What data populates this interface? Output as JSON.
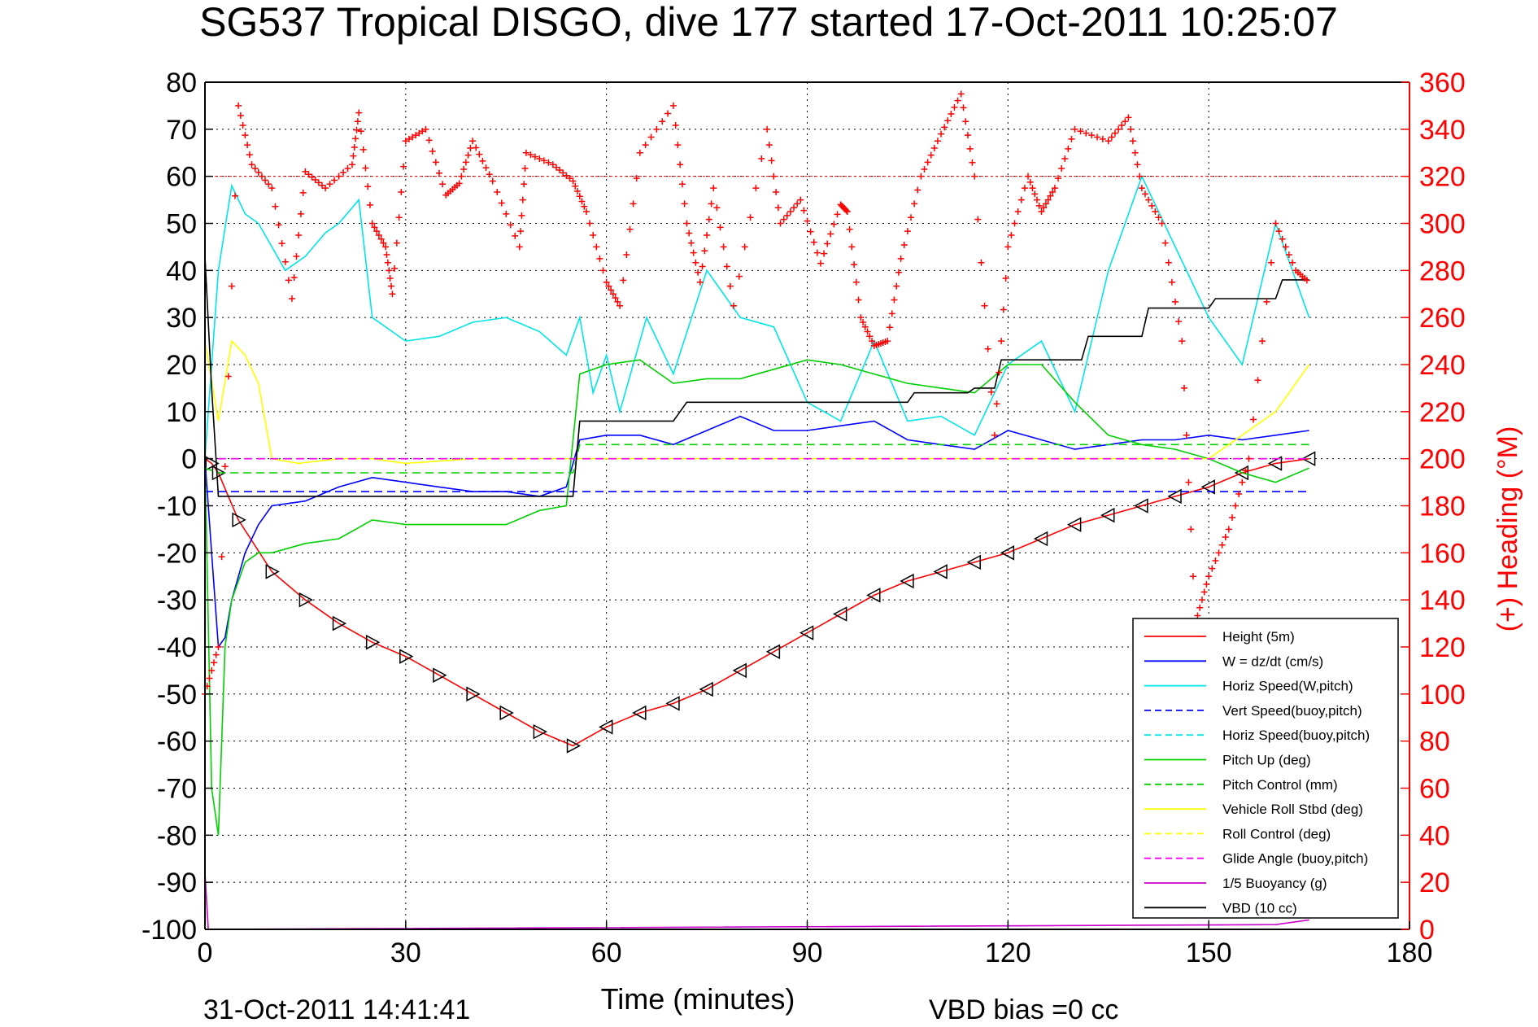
{
  "chart_data": {
    "type": "line",
    "title": "SG537 Tropical DISGO, dive 177 started 17-Oct-2011 10:25:07",
    "xlabel": "Time (minutes)",
    "ylabel_right": "(+) Heading (°M)",
    "footer_date": "31-Oct-2011 14:41:41",
    "footer_note": "VBD bias =0 cc",
    "xlim": [
      0,
      180
    ],
    "ylim": [
      -100,
      80
    ],
    "y2lim": [
      0,
      360
    ],
    "xticks": [
      0,
      30,
      60,
      90,
      120,
      150,
      180
    ],
    "yticks": [
      80,
      70,
      60,
      50,
      40,
      30,
      20,
      10,
      0,
      -10,
      -20,
      -30,
      -40,
      -50,
      -60,
      -70,
      -80,
      -90,
      -100
    ],
    "y2ticks": [
      360,
      340,
      320,
      300,
      280,
      260,
      240,
      220,
      200,
      180,
      160,
      140,
      120,
      100,
      80,
      60,
      40,
      20,
      0
    ],
    "grid": true,
    "legend_position": "bottom-right",
    "colors": {
      "height": "#ff0000",
      "w": "#0000ff",
      "horiz_w": "#00e5e5",
      "vert_buoy": "#0000ff",
      "horiz_buoy": "#00e5e5",
      "pitch_up": "#00d000",
      "pitch_control": "#00d000",
      "roll": "#ffff00",
      "roll_control": "#ffff00",
      "glide": "#ff00ff",
      "buoyancy": "#cc00cc",
      "vbd": "#000000",
      "heading": "#ff0000"
    },
    "legend": [
      {
        "label": "Height (5m)",
        "color": "#ff0000",
        "dash": "solid"
      },
      {
        "label": "W = dz/dt (cm/s)",
        "color": "#0000ff",
        "dash": "solid"
      },
      {
        "label": "Horiz Speed(W,pitch)",
        "color": "#00e5e5",
        "dash": "solid"
      },
      {
        "label": "Vert Speed(buoy,pitch)",
        "color": "#0000ff",
        "dash": "dashed"
      },
      {
        "label": "Horiz Speed(buoy,pitch)",
        "color": "#00e5e5",
        "dash": "dashed"
      },
      {
        "label": "Pitch Up (deg)",
        "color": "#00d000",
        "dash": "solid"
      },
      {
        "label": "Pitch Control (mm)",
        "color": "#00d000",
        "dash": "dashed"
      },
      {
        "label": "Vehicle Roll Stbd (deg)",
        "color": "#ffff00",
        "dash": "solid"
      },
      {
        "label": "Roll Control (deg)",
        "color": "#ffff00",
        "dash": "dashed"
      },
      {
        "label": "Glide Angle (buoy,pitch)",
        "color": "#ff00ff",
        "dash": "dashed"
      },
      {
        "label": "1/5 Buoyancy (g)",
        "color": "#cc00cc",
        "dash": "solid"
      },
      {
        "label": "VBD (10 cc)",
        "color": "#000000",
        "dash": "solid"
      }
    ],
    "series": [
      {
        "name": "Height (5m)",
        "x": [
          0,
          1,
          2,
          5,
          10,
          15,
          20,
          25,
          30,
          35,
          40,
          45,
          50,
          55,
          60,
          65,
          70,
          75,
          80,
          85,
          90,
          95,
          100,
          105,
          110,
          115,
          120,
          125,
          130,
          135,
          140,
          145,
          150,
          155,
          160,
          165
        ],
        "y": [
          0,
          -1,
          -3,
          -13,
          -24,
          -30,
          -35,
          -39,
          -42,
          -46,
          -50,
          -54,
          -58,
          -61,
          -57,
          -54,
          -52,
          -49,
          -45,
          -41,
          -37,
          -33,
          -29,
          -26,
          -24,
          -22,
          -20,
          -17,
          -14,
          -12,
          -10,
          -8,
          -6,
          -3,
          -1,
          0
        ]
      },
      {
        "name": "W = dz/dt (cm/s)",
        "x": [
          0,
          1,
          2,
          3,
          4,
          6,
          8,
          10,
          15,
          20,
          25,
          30,
          35,
          40,
          45,
          50,
          54,
          56,
          60,
          65,
          70,
          75,
          80,
          85,
          90,
          95,
          100,
          105,
          110,
          115,
          120,
          125,
          130,
          135,
          140,
          145,
          150,
          155,
          160,
          165
        ],
        "y": [
          0,
          -20,
          -40,
          -38,
          -30,
          -20,
          -14,
          -10,
          -9,
          -6,
          -4,
          -5,
          -6,
          -7,
          -7,
          -8,
          -6,
          4,
          5,
          5,
          3,
          6,
          9,
          6,
          6,
          7,
          8,
          4,
          3,
          2,
          6,
          4,
          2,
          3,
          4,
          4,
          5,
          4,
          5,
          6
        ]
      },
      {
        "name": "Horiz Speed(W,pitch)",
        "x": [
          0,
          2,
          4,
          6,
          8,
          10,
          12,
          15,
          18,
          20,
          23,
          25,
          30,
          35,
          40,
          45,
          50,
          54,
          56,
          58,
          60,
          62,
          66,
          70,
          75,
          80,
          85,
          90,
          95,
          100,
          105,
          110,
          115,
          120,
          125,
          130,
          135,
          140,
          145,
          150,
          155,
          160,
          165
        ],
        "y": [
          0,
          40,
          58,
          52,
          50,
          45,
          40,
          43,
          48,
          50,
          55,
          30,
          25,
          26,
          29,
          30,
          27,
          22,
          30,
          14,
          22,
          10,
          30,
          18,
          40,
          30,
          28,
          12,
          8,
          25,
          8,
          9,
          5,
          20,
          25,
          10,
          40,
          60,
          45,
          30,
          20,
          50,
          30
        ]
      },
      {
        "name": "Vert Speed(buoy,pitch)",
        "x": [
          0,
          165
        ],
        "y": [
          -7,
          -7
        ]
      },
      {
        "name": "Horiz Speed(buoy,pitch)",
        "x": [
          0,
          165
        ],
        "y": [
          0,
          0
        ]
      },
      {
        "name": "Pitch Up (deg)",
        "x": [
          0,
          1,
          2,
          3,
          4,
          6,
          8,
          10,
          15,
          20,
          25,
          30,
          35,
          40,
          45,
          50,
          54,
          56,
          60,
          65,
          70,
          75,
          80,
          85,
          90,
          95,
          100,
          105,
          110,
          115,
          120,
          125,
          130,
          135,
          140,
          145,
          150,
          155,
          160,
          165
        ],
        "y": [
          0,
          -70,
          -80,
          -40,
          -30,
          -22,
          -20,
          -20,
          -18,
          -17,
          -13,
          -14,
          -14,
          -14,
          -14,
          -11,
          -10,
          18,
          20,
          21,
          16,
          17,
          17,
          19,
          21,
          20,
          18,
          16,
          15,
          14,
          20,
          20,
          12,
          5,
          3,
          2,
          0,
          -3,
          -5,
          -2
        ]
      },
      {
        "name": "Pitch Control (mm)",
        "x": [
          0,
          2,
          55,
          56,
          105,
          106,
          165
        ],
        "y": [
          -2,
          -3,
          -3,
          3,
          3,
          3,
          3
        ]
      },
      {
        "name": "Vehicle Roll Stbd (deg)",
        "x": [
          0,
          2,
          4,
          6,
          8,
          10,
          14,
          20,
          25,
          30,
          40,
          50,
          60,
          70,
          80,
          90,
          100,
          110,
          120,
          130,
          140,
          150,
          160,
          165
        ],
        "y": [
          25,
          8,
          25,
          22,
          16,
          0,
          -1,
          0,
          0,
          -1,
          0,
          0,
          0,
          0,
          0,
          0,
          0,
          0,
          0,
          0,
          0,
          0,
          10,
          20
        ]
      },
      {
        "name": "Roll Control (deg)",
        "x": [
          0,
          165
        ],
        "y": [
          0,
          0
        ]
      },
      {
        "name": "Glide Angle (buoy,pitch)",
        "x": [
          0,
          165
        ],
        "y": [
          0,
          0
        ]
      },
      {
        "name": "1/5 Buoyancy (g)",
        "x": [
          0,
          0.5,
          160,
          165
        ],
        "y": [
          -88,
          -100,
          -99,
          -98
        ]
      },
      {
        "name": "VBD (10 cc)",
        "x": [
          0,
          1,
          2,
          55,
          56,
          70,
          72,
          105,
          106,
          114,
          115,
          118,
          119,
          131,
          132,
          140,
          141,
          150,
          151,
          160,
          161,
          165
        ],
        "y": [
          43,
          15,
          -8,
          -8,
          8,
          8,
          12,
          12,
          14,
          14,
          15,
          15,
          21,
          21,
          26,
          26,
          32,
          32,
          34,
          34,
          38,
          38
        ]
      },
      {
        "name": "(+) Heading (°M)",
        "x": [
          0,
          2,
          5,
          7,
          10,
          13,
          15,
          18,
          22,
          23,
          25,
          27,
          28,
          30,
          33,
          36,
          38,
          40,
          43,
          47,
          48,
          52,
          55,
          57,
          60,
          62,
          65,
          70,
          72,
          74,
          76,
          79,
          84,
          86,
          89,
          92,
          95,
          96,
          98,
          100,
          102,
          104,
          107,
          110,
          113,
          115,
          118,
          120,
          123,
          125,
          127,
          130,
          135,
          138,
          140,
          143,
          146,
          148,
          150,
          153,
          156,
          160,
          163,
          165
        ],
        "y": [
          100,
          120,
          350,
          325,
          315,
          268,
          322,
          315,
          325,
          347,
          300,
          290,
          270,
          335,
          340,
          312,
          317,
          335,
          318,
          290,
          330,
          325,
          318,
          305,
          275,
          265,
          330,
          350,
          300,
          275,
          315,
          265,
          340,
          300,
          310,
          283,
          308,
          305,
          260,
          248,
          250,
          285,
          320,
          338,
          355,
          320,
          210,
          290,
          320,
          305,
          315,
          340,
          335,
          345,
          315,
          300,
          250,
          130,
          150,
          170,
          200,
          300,
          280,
          275
        ]
      }
    ]
  }
}
